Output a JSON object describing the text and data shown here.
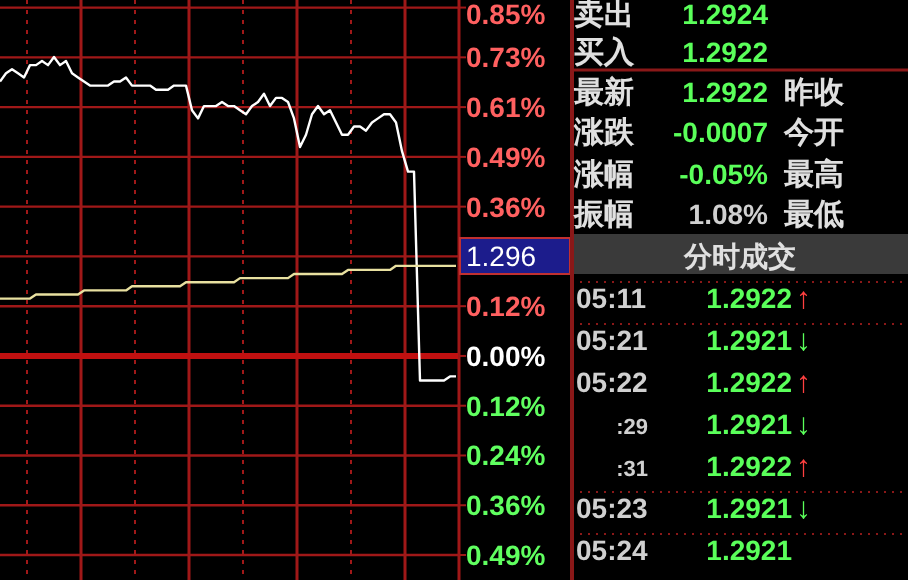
{
  "chart_data": [
    {
      "type": "line",
      "categories": [
        null,
        null,
        null,
        null,
        null,
        null,
        null,
        null,
        null,
        null,
        null,
        null,
        null,
        null,
        null,
        null,
        null,
        null,
        null,
        null,
        null,
        null,
        null,
        null,
        null,
        null,
        null,
        null,
        null,
        null,
        null,
        null,
        null,
        null,
        null,
        null,
        null,
        null,
        null,
        null,
        null,
        null,
        null,
        null,
        null,
        null,
        null,
        null,
        null,
        null,
        null,
        null,
        null,
        null,
        null,
        null,
        null,
        null,
        null,
        null,
        null,
        null,
        null,
        null,
        null,
        null,
        null,
        null,
        null,
        null,
        null,
        null,
        null,
        null,
        null,
        null,
        null
      ],
      "series": [
        {
          "color": "#ffffff",
          "values": [
            0.67,
            0.69,
            0.7,
            0.69,
            0.68,
            0.71,
            0.71,
            0.72,
            0.71,
            0.73,
            0.71,
            0.72,
            0.69,
            0.68,
            0.67,
            0.66,
            0.66,
            0.66,
            0.66,
            0.67,
            0.67,
            0.68,
            0.66,
            0.66,
            0.66,
            0.66,
            0.65,
            0.65,
            0.65,
            0.66,
            0.66,
            0.66,
            0.6,
            0.58,
            0.61,
            0.61,
            0.61,
            0.62,
            0.61,
            0.61,
            0.6,
            0.59,
            0.61,
            0.62,
            0.64,
            0.61,
            0.63,
            0.63,
            0.62,
            0.58,
            0.51,
            0.54,
            0.59,
            0.61,
            0.59,
            0.6,
            0.57,
            0.54,
            0.54,
            0.56,
            0.56,
            0.55,
            0.57,
            0.58,
            0.59,
            0.59,
            0.57,
            0.5,
            0.45,
            0.45,
            -0.06,
            -0.06,
            -0.06,
            -0.06,
            -0.06,
            -0.05,
            -0.05
          ]
        },
        {
          "color": "#e8e0a0",
          "values": [
            0.14,
            0.14,
            0.14,
            0.14,
            0.14,
            0.14,
            0.15,
            0.15,
            0.15,
            0.15,
            0.15,
            0.15,
            0.15,
            0.15,
            0.16,
            0.16,
            0.16,
            0.16,
            0.16,
            0.16,
            0.16,
            0.16,
            0.17,
            0.17,
            0.17,
            0.17,
            0.17,
            0.17,
            0.17,
            0.17,
            0.17,
            0.18,
            0.18,
            0.18,
            0.18,
            0.18,
            0.18,
            0.18,
            0.18,
            0.18,
            0.19,
            0.19,
            0.19,
            0.19,
            0.19,
            0.19,
            0.19,
            0.19,
            0.19,
            0.2,
            0.2,
            0.2,
            0.2,
            0.2,
            0.2,
            0.2,
            0.2,
            0.2,
            0.21,
            0.21,
            0.21,
            0.21,
            0.21,
            0.21,
            0.21,
            0.21,
            0.22,
            0.22,
            0.22,
            0.22,
            0.22,
            0.22,
            0.22,
            0.22,
            0.22,
            0.22,
            0.22
          ]
        }
      ],
      "ylim": [
        -0.547,
        0.869
      ],
      "yticks": [
        {
          "value": 0.8505,
          "label": "0.85%"
        },
        {
          "value": 0.729,
          "label": "0.73%"
        },
        {
          "value": 0.6075,
          "label": "0.61%"
        },
        {
          "value": 0.486,
          "label": "0.49%"
        },
        {
          "value": 0.3645,
          "label": "0.36%"
        },
        {
          "value": 0.243,
          "label": null
        },
        {
          "value": 0.1215,
          "label": "0.12%"
        },
        {
          "value": 0,
          "label": "0.00%"
        },
        {
          "value": -0.1215,
          "label": "0.12%"
        },
        {
          "value": -0.243,
          "label": "0.24%"
        },
        {
          "value": -0.3645,
          "label": "0.36%"
        },
        {
          "value": -0.486,
          "label": "0.49%"
        }
      ],
      "ref_lines": [
        {
          "axis": "y",
          "value": 0,
          "color": "#c01010"
        }
      ],
      "annotations": [
        "1.296"
      ],
      "grid": true,
      "tick_labels": "y"
    },
    {
      "type": "other",
      "annotations": [
        "卖出",
        "1.2924",
        "买入",
        "1.2922",
        "最新",
        "1.2922",
        "昨收",
        "涨跌",
        "-0.0007",
        "今开",
        "涨幅",
        "-0.05%",
        "最高",
        "振幅",
        "1.08%",
        "最低",
        "分时成交",
        "05:11",
        "1.2922",
        "↑",
        "05:21",
        "1.2921",
        "↓",
        "05:22",
        "1.2922",
        "↑",
        ":29",
        "1.2921",
        "↓",
        ":31",
        "1.2922",
        "↑",
        "05:23",
        "1.2921",
        "↓",
        "05:24",
        "1.2921"
      ],
      "colors": [
        "#e0e0e0",
        "#5aff5a",
        "#e0e0e0",
        "#5aff5a",
        "#e0e0e0",
        "#5aff5a",
        "#e0e0e0",
        "#e0e0e0",
        "#5aff5a",
        "#e0e0e0",
        "#e0e0e0",
        "#5aff5a",
        "#e0e0e0",
        "#e0e0e0",
        "#d0d0d0",
        "#e0e0e0",
        "#e0e0e0",
        "#d0d0d0",
        "#5aff5a",
        "#ff4040",
        "#d0d0d0",
        "#5aff5a",
        "#5aff5a",
        "#d0d0d0",
        "#5aff5a",
        "#ff4040",
        "#d0d0d0",
        "#5aff5a",
        "#5aff5a",
        "#d0d0d0",
        "#5aff5a",
        "#ff4040",
        "#d0d0d0",
        "#5aff5a",
        "#5aff5a",
        "#d0d0d0",
        "#5aff5a"
      ]
    }
  ]
}
